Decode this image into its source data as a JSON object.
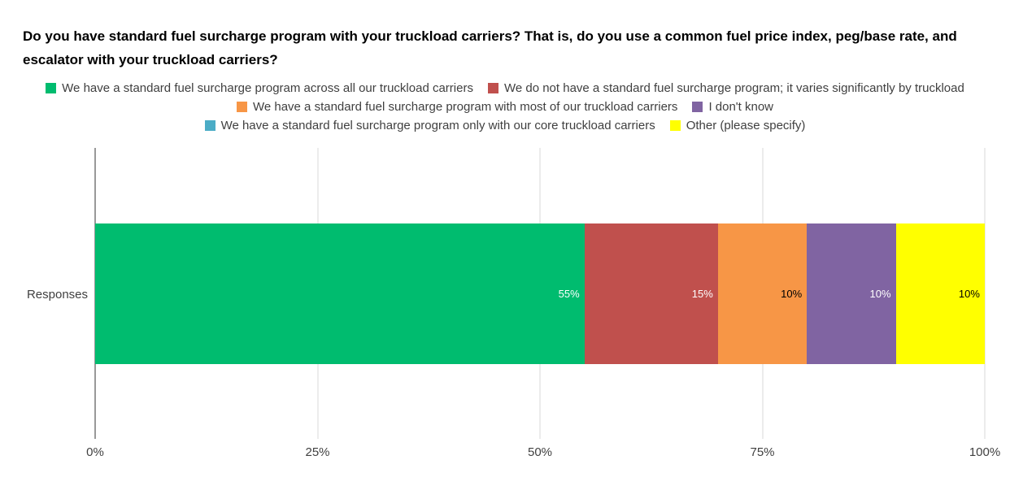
{
  "chart_data": {
    "type": "bar",
    "orientation": "horizontal",
    "stacked": true,
    "title": "Do you have standard fuel surcharge program with your truckload carriers? That is, do you use a common fuel price index, peg/base rate, and escalator with your truckload carriers?",
    "categories": [
      "Responses"
    ],
    "series": [
      {
        "name": "We have a standard fuel surcharge program across all our truckload carriers",
        "value": 55,
        "label": "55%",
        "color": "#00BC6F",
        "label_color": "#ffffff"
      },
      {
        "name": "We do not have a standard fuel surcharge program; it varies significantly by truckload",
        "value": 15,
        "label": "15%",
        "color": "#C0504D",
        "label_color": "#ffffff"
      },
      {
        "name": "We have a standard fuel surcharge program with most of our truckload carriers",
        "value": 10,
        "label": "10%",
        "color": "#F79646",
        "label_color": "#000000"
      },
      {
        "name": "I don't know",
        "value": 10,
        "label": "10%",
        "color": "#8064A2",
        "label_color": "#ffffff"
      },
      {
        "name": "We have a standard fuel surcharge program only with our core truckload carriers",
        "value": 0,
        "label": "",
        "color": "#4BACC6",
        "label_color": "#000000"
      },
      {
        "name": "Other (please specify)",
        "value": 10,
        "label": "10%",
        "color": "#FFFF00",
        "label_color": "#000000"
      }
    ],
    "x_ticks": [
      {
        "label": "0%",
        "value": 0
      },
      {
        "label": "25%",
        "value": 25
      },
      {
        "label": "50%",
        "value": 50
      },
      {
        "label": "75%",
        "value": 75
      },
      {
        "label": "100%",
        "value": 100
      }
    ],
    "xlim": [
      0,
      100
    ],
    "grid": true,
    "legend_position": "top",
    "legend_rows": [
      [
        0,
        1
      ],
      [
        2,
        3
      ],
      [
        4,
        5
      ]
    ]
  }
}
